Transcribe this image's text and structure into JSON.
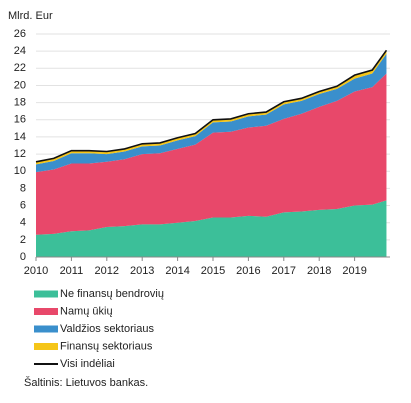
{
  "chart_data": {
    "type": "area",
    "stacked": true,
    "y_label": "Mlrd. Eur",
    "x": [
      2010.0,
      2010.5,
      2011.0,
      2011.5,
      2012.0,
      2012.5,
      2013.0,
      2013.5,
      2014.0,
      2014.5,
      2015.0,
      2015.5,
      2016.0,
      2016.5,
      2017.0,
      2017.5,
      2018.0,
      2018.5,
      2019.0,
      2019.5,
      2019.9
    ],
    "series": [
      {
        "name": "Ne finansų bendrovių",
        "color": "#3cbf99",
        "values": [
          2.6,
          2.7,
          3.0,
          3.1,
          3.5,
          3.6,
          3.8,
          3.8,
          4.0,
          4.2,
          4.6,
          4.6,
          4.8,
          4.7,
          5.2,
          5.3,
          5.5,
          5.6,
          6.0,
          6.1,
          6.6
        ]
      },
      {
        "name": "Namų ūkių",
        "color": "#e8486a",
        "values": [
          7.3,
          7.5,
          7.9,
          7.8,
          7.6,
          7.8,
          8.2,
          8.3,
          8.6,
          8.9,
          9.9,
          10.0,
          10.3,
          10.6,
          10.9,
          11.4,
          12.0,
          12.6,
          13.3,
          13.7,
          14.8
        ]
      },
      {
        "name": "Valdžios sektoriaus",
        "color": "#3a8fcc",
        "values": [
          0.9,
          1.0,
          1.2,
          1.2,
          0.9,
          0.9,
          0.9,
          0.9,
          1.0,
          1.0,
          1.2,
          1.2,
          1.3,
          1.3,
          1.7,
          1.5,
          1.5,
          1.4,
          1.5,
          1.6,
          2.3
        ]
      },
      {
        "name": "Finansų sektoriaus",
        "color": "#f5c518",
        "values": [
          0.3,
          0.3,
          0.3,
          0.3,
          0.3,
          0.3,
          0.3,
          0.3,
          0.3,
          0.3,
          0.3,
          0.3,
          0.3,
          0.3,
          0.3,
          0.3,
          0.3,
          0.3,
          0.4,
          0.4,
          0.4
        ]
      },
      {
        "name": "Visi indėliai",
        "color": "#111111",
        "type": "line",
        "values": [
          11.1,
          11.5,
          12.4,
          12.4,
          12.3,
          12.6,
          13.2,
          13.3,
          13.9,
          14.4,
          16.0,
          16.1,
          16.7,
          16.9,
          18.1,
          18.5,
          19.3,
          19.9,
          21.2,
          21.8,
          24.1
        ]
      }
    ],
    "xlim": [
      2010,
      2020
    ],
    "xticks": [
      2010,
      2011,
      2012,
      2013,
      2014,
      2015,
      2016,
      2017,
      2018,
      2019
    ],
    "ylim": [
      0,
      26
    ],
    "yticks": [
      0,
      2,
      4,
      6,
      8,
      10,
      12,
      14,
      16,
      18,
      20,
      22,
      24,
      26
    ],
    "grid": true,
    "source": "Šaltinis: Lietuvos bankas."
  }
}
